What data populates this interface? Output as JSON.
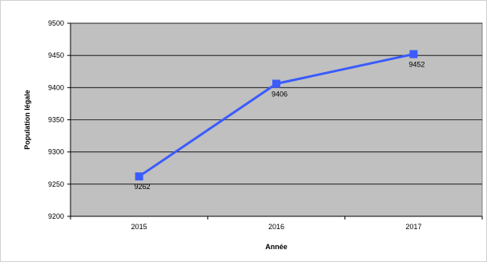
{
  "chart_data": {
    "type": "line",
    "title": "",
    "xlabel": "Année",
    "ylabel": "Population légale",
    "categories": [
      "2015",
      "2016",
      "2017"
    ],
    "series": [
      {
        "values": [
          9262,
          9406,
          9452
        ],
        "color": "#3b5bfd"
      }
    ],
    "data_labels": [
      "9262",
      "9406",
      "9452"
    ],
    "ylim": [
      9200,
      9500
    ],
    "yticks": [
      9200,
      9250,
      9300,
      9350,
      9400,
      9450,
      9500
    ],
    "ytick_labels": [
      "9200",
      "9250",
      "9300",
      "9350",
      "9400",
      "9450",
      "9500"
    ],
    "grid": true,
    "legend": "none",
    "plot_background": "#c0c0c0",
    "marker": "square"
  }
}
